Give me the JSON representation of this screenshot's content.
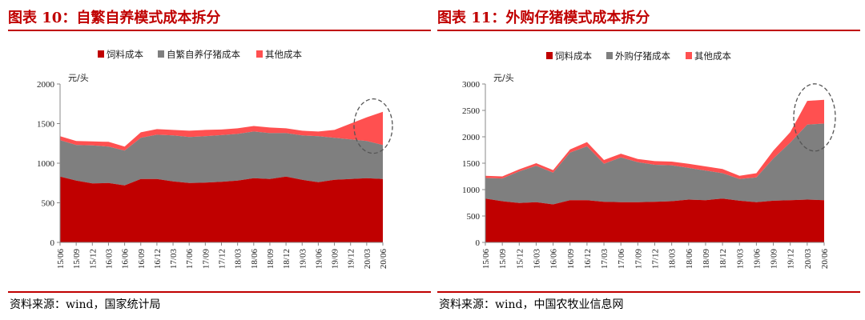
{
  "colors": {
    "feed": "#c00000",
    "piglet": "#7f7f7f",
    "other": "#ff5050",
    "title": "#c00000"
  },
  "charts": [
    {
      "title": "图表 10：自繁自养模式成本拆分",
      "source": "资料来源：wind，国家统计局",
      "chart_data": {
        "type": "area",
        "stacked": true,
        "ylabel": "元/头",
        "ylim": [
          0,
          2000
        ],
        "yticks": [
          0,
          500,
          1000,
          1500,
          2000
        ],
        "xticks": [
          "15/06",
          "15/09",
          "15/12",
          "16/03",
          "16/06",
          "16/09",
          "16/12",
          "17/03",
          "17/06",
          "17/09",
          "17/12",
          "18/03",
          "18/06",
          "18/09",
          "18/12",
          "19/03",
          "19/06",
          "19/09",
          "19/12",
          "20/03",
          "20/06"
        ],
        "x": [
          "15/06",
          "15/09",
          "15/12",
          "16/03",
          "16/06",
          "16/09",
          "16/12",
          "17/03",
          "17/06",
          "17/09",
          "17/12",
          "18/03",
          "18/06",
          "18/09",
          "18/12",
          "19/03",
          "19/06",
          "19/09",
          "19/12",
          "20/03",
          "20/06"
        ],
        "series": [
          {
            "name": "饲料成本",
            "values": [
              830,
              780,
              745,
              750,
              720,
              800,
              800,
              770,
              750,
              755,
              765,
              780,
              810,
              800,
              830,
              790,
              760,
              790,
              800,
              810,
              800
            ]
          },
          {
            "name": "自繁自养仔猪成本",
            "values": [
              460,
              450,
              480,
              460,
              440,
              520,
              560,
              580,
              580,
              585,
              590,
              590,
              590,
              580,
              550,
              560,
              580,
              530,
              500,
              470,
              430
            ]
          },
          {
            "name": "其他成本",
            "values": [
              50,
              50,
              50,
              60,
              50,
              70,
              70,
              70,
              80,
              80,
              70,
              70,
              70,
              70,
              60,
              60,
              60,
              100,
              200,
              300,
              420
            ]
          }
        ],
        "legend_position": "top"
      }
    },
    {
      "title": "图表 11：外购仔猪模式成本拆分",
      "source": "资料来源：wind，中国农牧业信息网",
      "chart_data": {
        "type": "area",
        "stacked": true,
        "ylabel": "元/头",
        "ylim": [
          0,
          3000
        ],
        "yticks": [
          0,
          500,
          1000,
          1500,
          2000,
          2500,
          3000
        ],
        "xticks": [
          "15/06",
          "15/09",
          "15/12",
          "16/03",
          "16/06",
          "16/09",
          "16/12",
          "17/03",
          "17/06",
          "17/09",
          "17/12",
          "18/03",
          "18/06",
          "18/09",
          "18/12",
          "19/03",
          "19/06",
          "19/09",
          "19/12",
          "20/03",
          "20/06"
        ],
        "x": [
          "15/06",
          "15/09",
          "15/12",
          "16/03",
          "16/06",
          "16/09",
          "16/12",
          "17/03",
          "17/06",
          "17/09",
          "17/12",
          "18/03",
          "18/06",
          "18/09",
          "18/12",
          "19/03",
          "19/06",
          "19/09",
          "19/12",
          "20/03",
          "20/06"
        ],
        "series": [
          {
            "name": "饲料成本",
            "values": [
              830,
              780,
              745,
              760,
              720,
              800,
              800,
              770,
              760,
              760,
              770,
              780,
              810,
              800,
              830,
              790,
              760,
              790,
              800,
              810,
              800
            ]
          },
          {
            "name": "外购仔猪成本",
            "values": [
              390,
              430,
              600,
              690,
              600,
              900,
              1020,
              720,
              850,
              760,
              700,
              680,
              600,
              560,
              480,
              410,
              470,
              800,
              1090,
              1420,
              1450
            ]
          },
          {
            "name": "其他成本",
            "values": [
              40,
              40,
              40,
              50,
              50,
              60,
              80,
              70,
              70,
              60,
              70,
              70,
              80,
              80,
              80,
              60,
              80,
              150,
              200,
              450,
              450
            ]
          }
        ],
        "legend_position": "top"
      }
    }
  ]
}
